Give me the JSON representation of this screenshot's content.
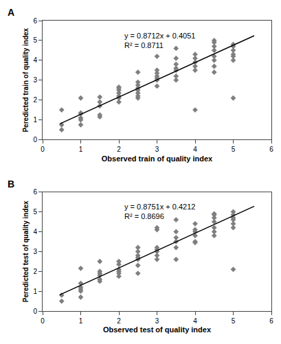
{
  "chart_data": [
    {
      "type": "scatter",
      "title": "A",
      "annotations": [
        "y = 0.8712x + 0.4051",
        "R² = 0.8711"
      ],
      "xlabel": "Observed train of quality index",
      "ylabel": "Peredicted train of quality index",
      "xlim": [
        0.0,
        6.0
      ],
      "ylim": [
        0.0,
        6.0
      ],
      "xticks": [
        0,
        1,
        2,
        3,
        4,
        5,
        6
      ],
      "yticks": [
        0,
        1,
        2,
        3,
        4,
        5,
        6
      ],
      "grid": false,
      "series": [
        {
          "type": "scatter",
          "color": "#7f7f7f",
          "marker": "diamond",
          "x": [
            0.5,
            0.5,
            0.5,
            1.0,
            1.0,
            1.0,
            1.0,
            1.0,
            1.0,
            1.5,
            1.5,
            1.5,
            1.5,
            1.5,
            2.0,
            2.0,
            2.0,
            2.0,
            2.0,
            2.0,
            2.0,
            2.5,
            2.5,
            2.5,
            2.5,
            2.5,
            2.5,
            2.5,
            2.5,
            3.0,
            3.0,
            3.0,
            3.0,
            3.0,
            3.0,
            3.0,
            3.5,
            3.5,
            3.5,
            3.5,
            3.5,
            3.5,
            3.5,
            4.0,
            4.0,
            4.0,
            4.0,
            4.0,
            4.0,
            4.5,
            4.5,
            4.5,
            4.5,
            4.5,
            4.5,
            4.5,
            4.5,
            5.0,
            5.0,
            5.0,
            5.0,
            5.0,
            5.0,
            5.0
          ],
          "values": [
            0.5,
            0.75,
            1.5,
            0.75,
            1.0,
            1.1,
            1.3,
            1.35,
            2.1,
            1.15,
            1.25,
            1.7,
            1.9,
            2.15,
            1.9,
            2.1,
            2.2,
            2.35,
            2.5,
            2.6,
            2.65,
            2.1,
            2.2,
            2.35,
            2.5,
            2.6,
            2.75,
            2.9,
            3.4,
            2.7,
            3.0,
            3.1,
            3.2,
            3.35,
            3.5,
            4.2,
            3.0,
            3.2,
            3.5,
            3.6,
            3.8,
            4.1,
            4.6,
            1.5,
            3.5,
            3.7,
            3.9,
            4.1,
            4.3,
            3.4,
            3.7,
            4.0,
            4.2,
            4.5,
            4.7,
            4.9,
            5.0,
            2.1,
            4.0,
            4.2,
            4.3,
            4.5,
            4.7,
            4.8
          ]
        },
        {
          "type": "line",
          "color": "#000000",
          "line_style": "solid",
          "x": [
            0.45,
            5.55
          ],
          "values": [
            0.79714,
            5.24026
          ]
        }
      ]
    },
    {
      "type": "scatter",
      "title": "B",
      "annotations": [
        "y = 0.8751x + 0.4212",
        "R² = 0.8696"
      ],
      "xlabel": "Observed test of quality index",
      "ylabel": "Peredicted test of quality index",
      "xlim": [
        0.0,
        6.0
      ],
      "ylim": [
        0.0,
        6.0
      ],
      "xticks": [
        0,
        1,
        2,
        3,
        4,
        5,
        6
      ],
      "yticks": [
        0,
        1,
        2,
        3,
        4,
        5,
        6
      ],
      "grid": false,
      "series": [
        {
          "type": "scatter",
          "color": "#7f7f7f",
          "marker": "diamond",
          "x": [
            0.5,
            0.5,
            1.0,
            1.0,
            1.0,
            1.0,
            1.0,
            1.0,
            1.5,
            1.5,
            1.5,
            1.5,
            1.5,
            1.5,
            2.0,
            2.0,
            2.0,
            2.0,
            2.0,
            2.0,
            2.5,
            2.5,
            2.5,
            2.5,
            2.5,
            2.5,
            2.5,
            3.0,
            3.0,
            3.0,
            3.0,
            3.0,
            3.0,
            3.0,
            3.5,
            3.5,
            3.5,
            3.5,
            3.5,
            3.5,
            4.0,
            4.0,
            4.0,
            4.0,
            4.0,
            4.0,
            4.5,
            4.5,
            4.5,
            4.5,
            4.5,
            4.5,
            4.5,
            5.0,
            5.0,
            5.0,
            5.0,
            5.0,
            5.0,
            5.0
          ],
          "values": [
            0.5,
            0.8,
            0.7,
            1.0,
            1.1,
            1.2,
            1.4,
            2.15,
            1.5,
            1.6,
            1.8,
            1.9,
            2.0,
            2.5,
            1.75,
            1.9,
            2.0,
            2.1,
            2.35,
            2.5,
            1.9,
            2.3,
            2.6,
            2.7,
            2.8,
            3.0,
            3.2,
            2.6,
            2.8,
            3.0,
            3.1,
            3.2,
            4.1,
            4.2,
            2.6,
            3.2,
            3.5,
            3.7,
            4.0,
            4.6,
            3.5,
            3.8,
            4.0,
            4.1,
            4.4,
            3.45,
            3.8,
            4.0,
            4.2,
            4.5,
            4.7,
            4.85,
            4.9,
            2.1,
            4.2,
            4.4,
            4.6,
            4.7,
            4.85,
            5.0
          ]
        },
        {
          "type": "line",
          "color": "#000000",
          "line_style": "solid",
          "x": [
            0.45,
            5.55
          ],
          "values": [
            0.814995,
            5.278005
          ]
        }
      ]
    }
  ]
}
